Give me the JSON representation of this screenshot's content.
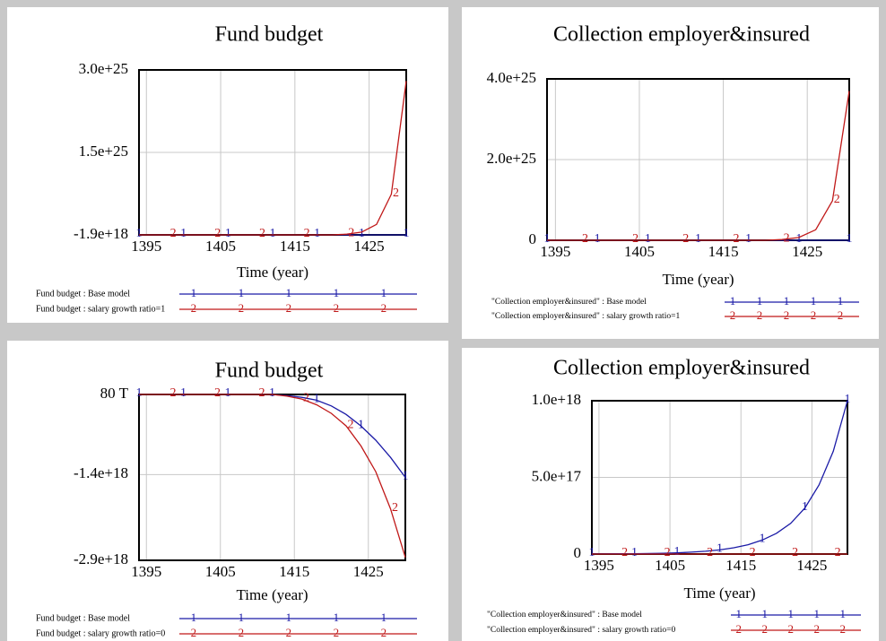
{
  "chart_data": [
    {
      "type": "line",
      "title": "Fund budget",
      "xlabel": "Time (year)",
      "x": [
        1394,
        1396,
        1398,
        1400,
        1402,
        1404,
        1406,
        1408,
        1410,
        1412,
        1414,
        1416,
        1418,
        1420,
        1422,
        1424,
        1426,
        1428,
        1430
      ],
      "xlim": [
        1394,
        1430
      ],
      "xticks": [
        1395,
        1405,
        1415,
        1425
      ],
      "ylim": [
        -1.9e+18,
        3e+25
      ],
      "yticks": [
        {
          "value": 3e+25,
          "label": "3.0e+25"
        },
        {
          "value": 1.5e+25,
          "label": "1.5e+25"
        },
        {
          "value": -1.9e+18,
          "label": "-1.9e+18"
        }
      ],
      "grid": true,
      "series": [
        {
          "name": "Fund budget : Base model",
          "marker": "1",
          "color": "#1a1aa6",
          "values": [
            0,
            0,
            0,
            0,
            0,
            0,
            0,
            0,
            0,
            0,
            0,
            0,
            0,
            0,
            0,
            0,
            0,
            0,
            0
          ]
        },
        {
          "name": "Fund budget : salary growth ratio=1",
          "marker": "2",
          "color": "#c01818",
          "values": [
            0,
            0,
            0,
            0,
            0,
            0,
            0,
            0,
            0,
            0,
            0,
            0,
            0,
            0,
            1.3e+23,
            5.1e+23,
            1.9e+24,
            7.4e+24,
            2.8e+25
          ]
        }
      ]
    },
    {
      "type": "line",
      "title": "Collection employer&insured",
      "xlabel": "Time (year)",
      "x": [
        1394,
        1396,
        1398,
        1400,
        1402,
        1404,
        1406,
        1408,
        1410,
        1412,
        1414,
        1416,
        1418,
        1420,
        1422,
        1424,
        1426,
        1428,
        1430
      ],
      "xlim": [
        1394,
        1430
      ],
      "xticks": [
        1395,
        1405,
        1415,
        1425
      ],
      "ylim": [
        0,
        4e+25
      ],
      "yticks": [
        {
          "value": 4e+25,
          "label": "4.0e+25"
        },
        {
          "value": 2e+25,
          "label": "2.0e+25"
        },
        0
      ],
      "grid": true,
      "series": [
        {
          "name": "\"Collection employer&insured\" : Base model",
          "marker": "1",
          "color": "#1a1aa6",
          "values": [
            0,
            0,
            0,
            0,
            0,
            0,
            0,
            0,
            0,
            0,
            0,
            0,
            0,
            0,
            0,
            0,
            0,
            0,
            0
          ]
        },
        {
          "name": "\"Collection employer&insured\" : salary growth ratio=1",
          "marker": "2",
          "color": "#c01818",
          "values": [
            0,
            0,
            0,
            0,
            0,
            0,
            0,
            0,
            0,
            0,
            0,
            0,
            0,
            0,
            1.8e+23,
            6.8e+23,
            2.6e+24,
            9.8e+24,
            3.7e+25
          ]
        }
      ]
    },
    {
      "type": "line",
      "title": "Fund budget",
      "xlabel": "Time (year)",
      "x": [
        1394,
        1396,
        1398,
        1400,
        1402,
        1404,
        1406,
        1408,
        1410,
        1412,
        1414,
        1416,
        1418,
        1420,
        1422,
        1424,
        1426,
        1428,
        1430
      ],
      "xlim": [
        1394,
        1430
      ],
      "xticks": [
        1395,
        1405,
        1415,
        1425
      ],
      "ylim": [
        -2.9e+18,
        80000000000000.0
      ],
      "yticks": [
        {
          "value": 80000000000000.0,
          "label": "80 T"
        },
        {
          "value": -1.4e+18,
          "label": "-1.4e+18"
        },
        {
          "value": -2.9e+18,
          "label": "-2.9e+18"
        }
      ],
      "grid": true,
      "series": [
        {
          "name": "Fund budget : Base model",
          "marker": "1",
          "color": "#1a1aa6",
          "values": [
            0,
            0,
            0,
            0,
            0,
            0,
            0,
            0,
            0,
            0,
            -2e+16,
            -5e+16,
            -1e+17,
            -2e+17,
            -3.5e+17,
            -5.5e+17,
            -8e+17,
            -1.1e+18,
            -1.45e+18
          ]
        },
        {
          "name": "Fund budget : salary growth ratio=0",
          "marker": "2",
          "color": "#c01818",
          "values": [
            0,
            0,
            0,
            0,
            0,
            0,
            0,
            0,
            0,
            0,
            -3e+16,
            -8e+16,
            -1.8e+17,
            -3.3e+17,
            -5.5e+17,
            -9e+17,
            -1.35e+18,
            -2e+18,
            -2.85e+18
          ]
        }
      ]
    },
    {
      "type": "line",
      "title": "Collection employer&insured",
      "xlabel": "Time (year)",
      "x": [
        1394,
        1396,
        1398,
        1400,
        1402,
        1404,
        1406,
        1408,
        1410,
        1412,
        1414,
        1416,
        1418,
        1420,
        1422,
        1424,
        1426,
        1428,
        1430
      ],
      "xlim": [
        1394,
        1430
      ],
      "xticks": [
        1395,
        1405,
        1415,
        1425
      ],
      "ylim": [
        0,
        1e+18
      ],
      "yticks": [
        {
          "value": 1e+18,
          "label": "1.0e+18"
        },
        {
          "value": 5e+17,
          "label": "5.0e+17"
        },
        0
      ],
      "grid": true,
      "series": [
        {
          "name": "\"Collection employer&insured\" : Base model",
          "marker": "1",
          "color": "#1a1aa6",
          "values": [
            750000000000000.0,
            1100000000000000.0,
            1700000000000000.0,
            2500000000000000.0,
            3700000000000000.0,
            5500000000000000.0,
            8200000000000000.0,
            1.2e+16,
            1.8e+16,
            2.7e+16,
            4.1e+16,
            6.1e+16,
            9.1e+16,
            1.35e+17,
            2e+17,
            3e+17,
            4.5e+17,
            6.7e+17,
            1e+18
          ]
        },
        {
          "name": "\"Collection employer&insured\" : salary growth ratio=0",
          "marker": "2",
          "color": "#c01818",
          "values": [
            0,
            0,
            0,
            0,
            0,
            0,
            0,
            0,
            0,
            0,
            0,
            0,
            0,
            0,
            0,
            0,
            0,
            0,
            0
          ]
        }
      ]
    }
  ]
}
